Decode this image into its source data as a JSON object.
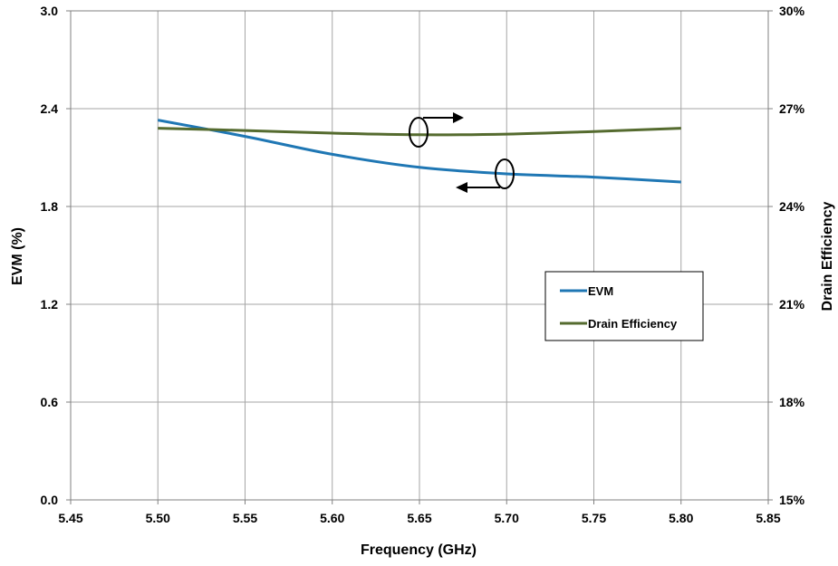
{
  "chart_data": {
    "type": "line",
    "title": "",
    "xlabel": "Frequency (GHz)",
    "ylabel_left": "EVM (%)",
    "ylabel_right": "Drain Efficiency",
    "xlim": [
      5.45,
      5.85
    ],
    "xticks": [
      "5.45",
      "5.50",
      "5.55",
      "5.60",
      "5.65",
      "5.70",
      "5.75",
      "5.80",
      "5.85"
    ],
    "ylim_left": [
      0.0,
      3.0
    ],
    "yticks_left": [
      "0.0",
      "0.6",
      "1.2",
      "1.8",
      "2.4",
      "3.0"
    ],
    "ylim_right": [
      15,
      30
    ],
    "yticks_right": [
      "15%",
      "18%",
      "21%",
      "24%",
      "27%",
      "30%"
    ],
    "grid": true,
    "legend_position": "right-middle",
    "series": [
      {
        "name": "EVM",
        "axis": "left",
        "color": "#1f77b4",
        "x": [
          5.5,
          5.55,
          5.6,
          5.65,
          5.7,
          5.75,
          5.8
        ],
        "y": [
          2.33,
          2.23,
          2.12,
          2.04,
          2.0,
          1.98,
          1.95
        ]
      },
      {
        "name": "Drain Efficiency",
        "axis": "right",
        "color": "#556b2f",
        "x": [
          5.5,
          5.55,
          5.6,
          5.65,
          5.7,
          5.75,
          5.8
        ],
        "y": [
          26.4,
          26.33,
          26.25,
          26.2,
          26.22,
          26.3,
          26.4
        ]
      }
    ]
  }
}
